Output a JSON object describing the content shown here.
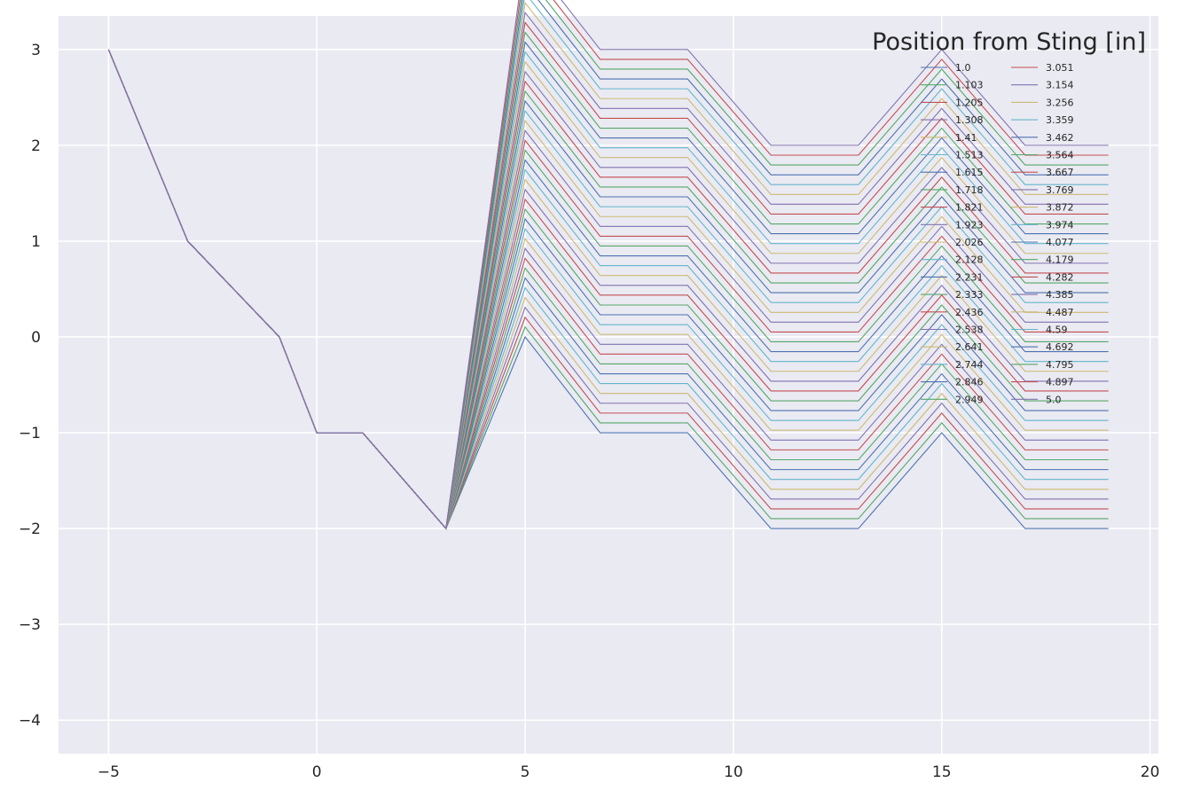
{
  "chart_data": {
    "type": "line",
    "title": "",
    "xlabel": "",
    "ylabel": "",
    "xlim": [
      -6.2,
      20.2
    ],
    "ylim": [
      -4.35,
      3.35
    ],
    "xticks": [
      -5,
      0,
      5,
      10,
      15,
      20
    ],
    "yticks": [
      -4,
      -3,
      -2,
      -1,
      0,
      1,
      2,
      3
    ],
    "xtick_labels": [
      "−5",
      "0",
      "5",
      "10",
      "15",
      "20"
    ],
    "ytick_labels": [
      "−4",
      "−3",
      "−2",
      "−1",
      "0",
      "1",
      "2",
      "3"
    ],
    "grid": true,
    "background": "#eaeaf2",
    "grid_color": "#ffffff",
    "palette": [
      "#4c72b0",
      "#55a868",
      "#c44e52",
      "#8172b2",
      "#ccb974",
      "#64b5cd"
    ],
    "x": [
      -5,
      -3.1,
      -0.9,
      0,
      1.1,
      3.1,
      5,
      6.8,
      8.9,
      10.9,
      13,
      15,
      17,
      19
    ],
    "curve_template": {
      "fixed_y": [
        3,
        1,
        0,
        -1,
        -1,
        -2
      ],
      "offsets_from_p": [
        -1,
        -2,
        -2,
        -3,
        -3,
        -2,
        -3,
        -3
      ],
      "description_formula_note": ""
    },
    "legend": {
      "title": "Position from Sting [in]",
      "location": "upper right",
      "ncol": 2
    },
    "series": [
      {
        "name": "1.0",
        "p": 1.0
      },
      {
        "name": "1.103",
        "p": 1.103
      },
      {
        "name": "1.205",
        "p": 1.205
      },
      {
        "name": "1.308",
        "p": 1.308
      },
      {
        "name": "1.41",
        "p": 1.41
      },
      {
        "name": "1.513",
        "p": 1.513
      },
      {
        "name": "1.615",
        "p": 1.615
      },
      {
        "name": "1.718",
        "p": 1.718
      },
      {
        "name": "1.821",
        "p": 1.821
      },
      {
        "name": "1.923",
        "p": 1.923
      },
      {
        "name": "2.026",
        "p": 2.026
      },
      {
        "name": "2.128",
        "p": 2.128
      },
      {
        "name": "2.231",
        "p": 2.231
      },
      {
        "name": "2.333",
        "p": 2.333
      },
      {
        "name": "2.436",
        "p": 2.436
      },
      {
        "name": "2.538",
        "p": 2.538
      },
      {
        "name": "2.641",
        "p": 2.641
      },
      {
        "name": "2.744",
        "p": 2.744
      },
      {
        "name": "2.846",
        "p": 2.846
      },
      {
        "name": "2.949",
        "p": 2.949
      },
      {
        "name": "3.051",
        "p": 3.051
      },
      {
        "name": "3.154",
        "p": 3.154
      },
      {
        "name": "3.256",
        "p": 3.256
      },
      {
        "name": "3.359",
        "p": 3.359
      },
      {
        "name": "3.462",
        "p": 3.462
      },
      {
        "name": "3.564",
        "p": 3.564
      },
      {
        "name": "3.667",
        "p": 3.667
      },
      {
        "name": "3.769",
        "p": 3.769
      },
      {
        "name": "3.872",
        "p": 3.872
      },
      {
        "name": "3.974",
        "p": 3.974
      },
      {
        "name": "4.077",
        "p": 4.077
      },
      {
        "name": "4.179",
        "p": 4.179
      },
      {
        "name": "4.282",
        "p": 4.282
      },
      {
        "name": "4.385",
        "p": 4.385
      },
      {
        "name": "4.487",
        "p": 4.487
      },
      {
        "name": "4.59",
        "p": 4.59
      },
      {
        "name": "4.692",
        "p": 4.692
      },
      {
        "name": "4.795",
        "p": 4.795
      },
      {
        "name": "4.897",
        "p": 4.897
      },
      {
        "name": "5.0",
        "p": 5.0
      }
    ]
  }
}
